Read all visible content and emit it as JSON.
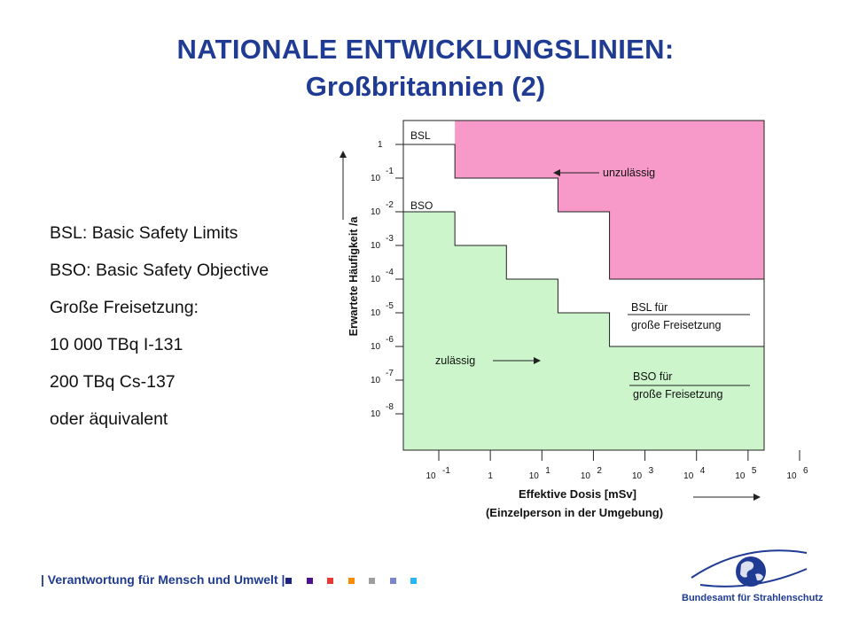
{
  "title": {
    "line1": "NATIONALE ENTWICKLUNGSLINIEN:",
    "line2": "Großbritannien (2)"
  },
  "legend_text": [
    "BSL:  Basic Safety Limits",
    "BSO: Basic Safety Objective",
    "Große Freisetzung:",
    "10 000 TBq I-131",
    "200 TBq Cs-137",
    "oder äquivalent"
  ],
  "chart_data": {
    "type": "area",
    "ylabel": "Erwartete Häufigkeit /a",
    "xlabel": "Effektive Dosis      [mSv]",
    "xlabel2": "(Einzelperson in der Umgebung)",
    "x_scale": "log",
    "y_scale": "log",
    "y_ticks": [
      {
        "base": "1",
        "exp": ""
      },
      {
        "base": "10",
        "exp": "-1"
      },
      {
        "base": "10",
        "exp": "-2"
      },
      {
        "base": "10",
        "exp": "-3"
      },
      {
        "base": "10",
        "exp": "-4"
      },
      {
        "base": "10",
        "exp": "-5"
      },
      {
        "base": "10",
        "exp": "-6"
      },
      {
        "base": "10",
        "exp": "-7"
      },
      {
        "base": "10",
        "exp": "-8"
      }
    ],
    "x_ticks": [
      {
        "base": "10",
        "exp": "-1"
      },
      {
        "base": "1",
        "exp": ""
      },
      {
        "base": "10",
        "exp": "1"
      },
      {
        "base": "10",
        "exp": "2"
      },
      {
        "base": "10",
        "exp": "3"
      },
      {
        "base": "10",
        "exp": "4"
      },
      {
        "base": "10",
        "exp": "5"
      },
      {
        "base": "10",
        "exp": "6"
      }
    ],
    "bsl_steps": [
      {
        "dose_from": 0.1,
        "dose_to": 1,
        "frequency": 1
      },
      {
        "dose_from": 1,
        "dose_to": 100,
        "frequency": 0.1
      },
      {
        "dose_from": 100,
        "dose_to": 1000,
        "frequency": 0.01
      },
      {
        "dose_from": 1000,
        "dose_to": 1000000,
        "frequency": 0.0001
      }
    ],
    "bso_steps": [
      {
        "dose_from": 0.1,
        "dose_to": 1,
        "frequency": 0.01
      },
      {
        "dose_from": 1,
        "dose_to": 10,
        "frequency": 0.001
      },
      {
        "dose_from": 10,
        "dose_to": 100,
        "frequency": 0.0001
      },
      {
        "dose_from": 100,
        "dose_to": 1000,
        "frequency": 1e-05
      },
      {
        "dose_from": 1000,
        "dose_to": 1000000,
        "frequency": 1e-06
      }
    ],
    "labels": {
      "bsl": "BSL",
      "bso": "BSO",
      "unzulaessig": "unzulässig",
      "zulaessig": "zulässig",
      "bsl_large_1": "BSL für",
      "bsl_large_2": "große Freisetzung",
      "bso_large_1": "BSO für",
      "bso_large_2": "große Freisetzung"
    },
    "colors": {
      "unacceptable": "#f79ac9",
      "acceptable": "#ccf5cc",
      "middle": "#ffffff"
    }
  },
  "footer": {
    "text": "| Verantwortung für Mensch und Umwelt |",
    "squares": [
      "#1a237e",
      "#4a148c",
      "#e53935",
      "#fb8c00",
      "#9e9e9e",
      "#7986cb",
      "#29b6f6"
    ]
  },
  "logo": {
    "text": "Bundesamt für Strahlenschutz"
  }
}
